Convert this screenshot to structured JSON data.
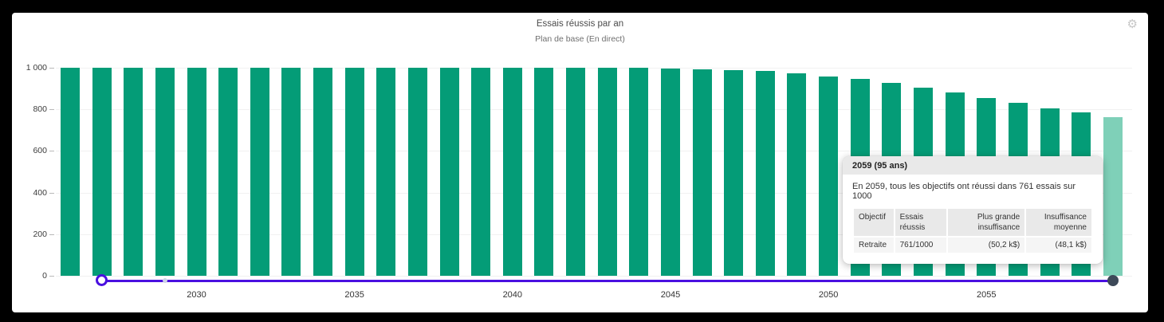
{
  "header": {
    "title": "Essais réussis par an",
    "subtitle": "Plan de base (En direct)"
  },
  "settings": {
    "icon": "gear",
    "glyph": "⚙"
  },
  "chart_data": {
    "type": "bar",
    "title": "Essais réussis par an",
    "subtitle": "Plan de base (En direct)",
    "x": [
      2026,
      2027,
      2028,
      2029,
      2030,
      2031,
      2032,
      2033,
      2034,
      2035,
      2036,
      2037,
      2038,
      2039,
      2040,
      2041,
      2042,
      2043,
      2044,
      2045,
      2046,
      2047,
      2048,
      2049,
      2050,
      2051,
      2052,
      2053,
      2054,
      2055,
      2056,
      2057,
      2058,
      2059
    ],
    "values": [
      1000,
      1000,
      1000,
      1000,
      1000,
      1000,
      1000,
      1000,
      1000,
      1000,
      1000,
      1000,
      1000,
      1000,
      1000,
      1000,
      1000,
      1000,
      1000,
      998,
      991,
      989,
      983,
      975,
      957,
      945,
      926,
      906,
      882,
      853,
      830,
      806,
      785,
      761
    ],
    "highlighted_x": 2059,
    "x_tick_labels": [
      "2030",
      "2035",
      "2040",
      "2045",
      "2050",
      "2055"
    ],
    "y_ticks": [
      {
        "label": "1 000",
        "value": 1000
      },
      {
        "label": "800",
        "value": 800
      },
      {
        "label": "600",
        "value": 600
      },
      {
        "label": "400",
        "value": 400
      },
      {
        "label": "200",
        "value": 200
      },
      {
        "label": "0",
        "value": 0
      }
    ],
    "ylim": [
      0,
      1000
    ],
    "grid": "horizontal",
    "legend": false,
    "bar_color": "#049c77",
    "highlight_bar_color": "#7fd0b8"
  },
  "slider": {
    "start_x": 2027,
    "end_x": 2059,
    "marker_x": 2029,
    "track_color": "#4a10e0",
    "left_handle_style": "open-circle",
    "right_handle_style": "filled-circle",
    "right_handle_color": "#3d4958"
  },
  "tooltip": {
    "title": "2059 (95 ans)",
    "summary": "En 2059, tous les objectifs ont réussi dans 761 essais sur 1000",
    "table": {
      "headers": [
        "Objectif",
        "Essais réussis",
        "Plus grande insuffisance",
        "Insuffisance moyenne"
      ],
      "rows": [
        [
          "Retraite",
          "761/1000",
          "(50,2 k$)",
          "(48,1 k$)"
        ]
      ]
    }
  }
}
